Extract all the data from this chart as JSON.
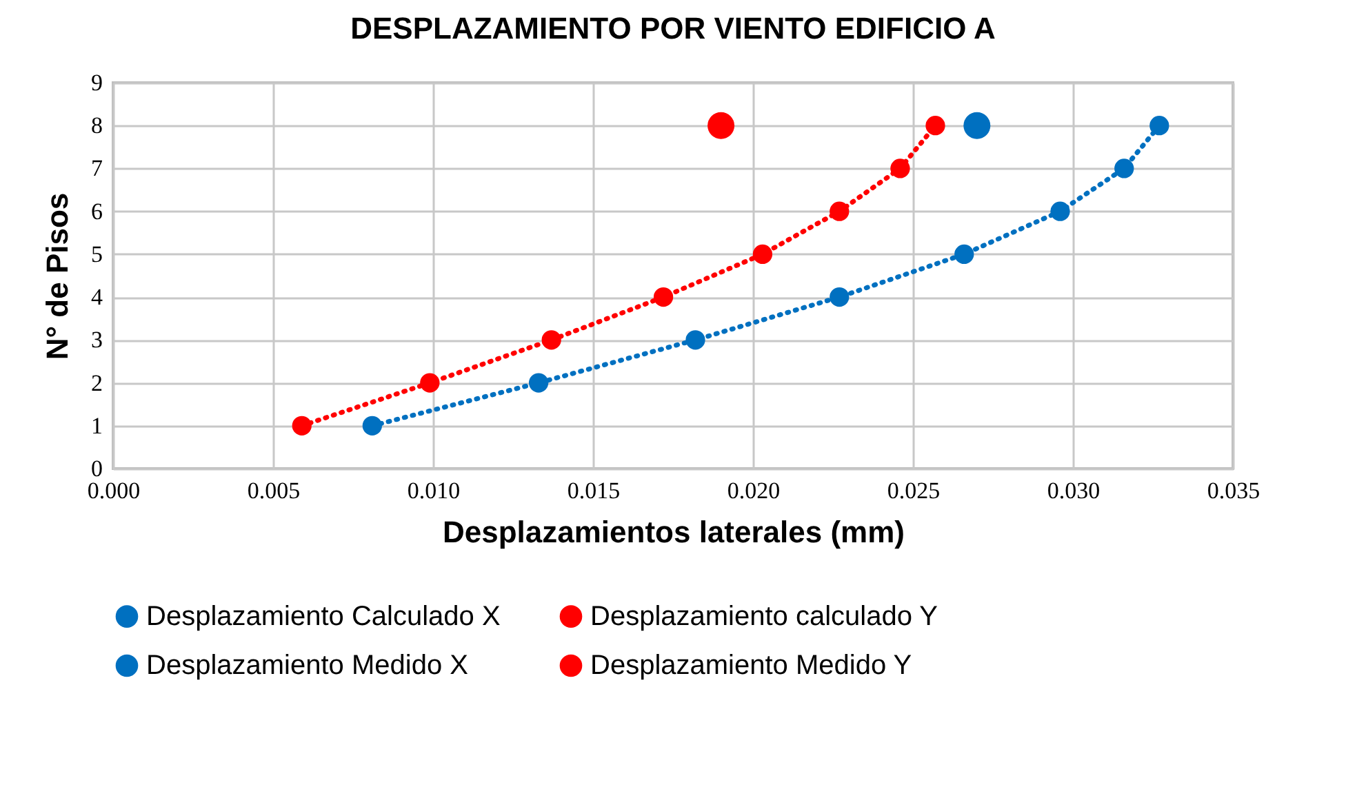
{
  "chart_data": {
    "type": "line",
    "title": "DESPLAZAMIENTO POR VIENTO EDIFICIO A",
    "xlabel": "Desplazamientos laterales (mm)",
    "ylabel": "N° de Pisos",
    "xlim": [
      0,
      0.035
    ],
    "xticks": [
      {
        "value": 0,
        "label": "0.000"
      },
      {
        "value": 0.005,
        "label": "0.005"
      },
      {
        "value": 0.01,
        "label": "0.010"
      },
      {
        "value": 0.015,
        "label": "0.015"
      },
      {
        "value": 0.02,
        "label": "0.020"
      },
      {
        "value": 0.025,
        "label": "0.025"
      },
      {
        "value": 0.03,
        "label": "0.030"
      },
      {
        "value": 0.035,
        "label": "0.035"
      }
    ],
    "ylim": [
      0,
      9
    ],
    "yticks": [
      0,
      1,
      2,
      3,
      4,
      5,
      6,
      7,
      8,
      9
    ],
    "grid": true,
    "legend": "bottom",
    "marker": "circle",
    "line_style": "dotted",
    "series": [
      {
        "name": "Desplazamiento Calculado X",
        "color": "#0070c0",
        "x": [
          0.0081,
          0.0133,
          0.0182,
          0.0227,
          0.0266,
          0.0296,
          0.0316,
          0.0327
        ],
        "values": [
          1,
          2,
          3,
          4,
          5,
          6,
          7,
          8
        ]
      },
      {
        "name": "Desplazamiento calculado Y",
        "color": "#ff0000",
        "x": [
          0.0059,
          0.0099,
          0.0137,
          0.0172,
          0.0203,
          0.0227,
          0.0246,
          0.0257
        ],
        "values": [
          1,
          2,
          3,
          4,
          5,
          6,
          7,
          8
        ]
      },
      {
        "name": "Desplazamiento Medido X",
        "type": "scatter",
        "color": "#0070c0",
        "x": [
          0.027
        ],
        "values": [
          8
        ]
      },
      {
        "name": "Desplazamiento Medido Y",
        "type": "scatter",
        "color": "#ff0000",
        "x": [
          0.019
        ],
        "values": [
          8
        ]
      }
    ]
  }
}
